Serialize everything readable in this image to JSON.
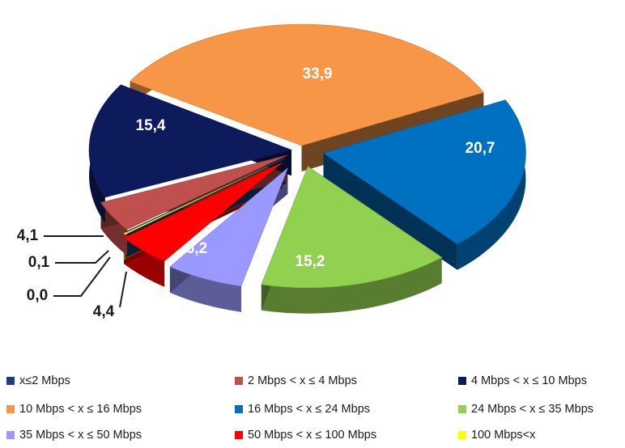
{
  "chart_data": {
    "type": "pie",
    "title": "",
    "style": "3d-exploded",
    "legend_position": "bottom",
    "slices": [
      {
        "label": "x≤2 Mbps",
        "value": 0.0,
        "value_text": "0,0",
        "color": "#1f3d7a"
      },
      {
        "label": "2 Mbps < x ≤ 4 Mbps",
        "value": 4.1,
        "value_text": "4,1",
        "color": "#c0504d"
      },
      {
        "label": "4 Mbps < x ≤ 10 Mbps",
        "value": 15.4,
        "value_text": "15,4",
        "color": "#0d1a5c"
      },
      {
        "label": "10 Mbps < x ≤ 16 Mbps",
        "value": 33.9,
        "value_text": "33,9",
        "color": "#f79646"
      },
      {
        "label": "16 Mbps < x ≤ 24 Mbps",
        "value": 20.7,
        "value_text": "20,7",
        "color": "#0070c0"
      },
      {
        "label": "24 Mbps < x ≤ 35 Mbps",
        "value": 15.2,
        "value_text": "15,2",
        "color": "#92d050"
      },
      {
        "label": "35 Mbps < x ≤ 50 Mbps",
        "value": 6.2,
        "value_text": "6,2",
        "color": "#9999ff"
      },
      {
        "label": "50 Mbps < x ≤ 100 Mbps",
        "value": 4.4,
        "value_text": "4,4",
        "color": "#ff0000"
      },
      {
        "label": "100 Mbps<x",
        "value": 0.1,
        "value_text": "0,1",
        "color": "#ffff00"
      }
    ]
  }
}
